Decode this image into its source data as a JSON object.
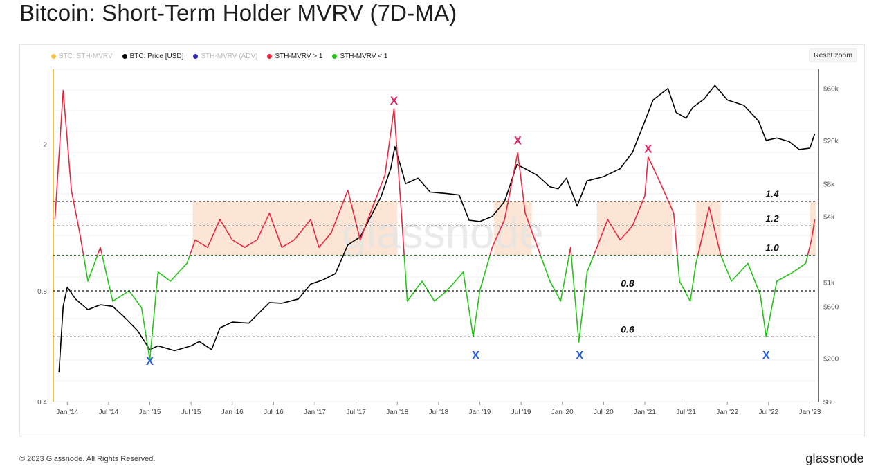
{
  "title": "Bitcoin: Short-Term Holder MVRV (7D-MA)",
  "reset_zoom_label": "Reset zoom",
  "footer": "© 2023 Glassnode. All Rights Reserved.",
  "brand": "glassnode",
  "watermark": "glassnode",
  "legend": [
    {
      "label": "BTC: STH-MVRV",
      "color": "#f7c04a",
      "muted": true
    },
    {
      "label": "BTC: Price [USD]",
      "color": "#000000",
      "muted": false
    },
    {
      "label": "STH-MVRV (ADV)",
      "color": "#2b2bb5",
      "muted": true
    },
    {
      "label": "STH-MVRV > 1",
      "color": "#e8283f",
      "muted": false
    },
    {
      "label": "STH-MVRV < 1",
      "color": "#27c21a",
      "muted": false
    }
  ],
  "chart_data": {
    "type": "line",
    "x_tick_labels": [
      "Jan '14",
      "Jul '14",
      "Jan '15",
      "Jul '15",
      "Jan '16",
      "Jul '16",
      "Jan '17",
      "Jul '17",
      "Jan '18",
      "Jul '18",
      "Jan '19",
      "Jul '19",
      "Jan '20",
      "Jul '20",
      "Jan '21",
      "Jul '21",
      "Jan '22",
      "Jul '22",
      "Jan '23"
    ],
    "y_left_ticks": [
      {
        "value": 0.4,
        "label": "0.4"
      },
      {
        "value": 0.8,
        "label": "0.8"
      },
      {
        "value": 2,
        "label": "2"
      }
    ],
    "y_left_scale": "log",
    "y_left_range": [
      0.4,
      3.2
    ],
    "y_right_ticks": [
      {
        "value": 80,
        "label": "$80"
      },
      {
        "value": 200,
        "label": "$200"
      },
      {
        "value": 600,
        "label": "$600"
      },
      {
        "value": 1000,
        "label": "$1k"
      },
      {
        "value": 4000,
        "label": "$4k"
      },
      {
        "value": 8000,
        "label": "$8k"
      },
      {
        "value": 20000,
        "label": "$20k"
      },
      {
        "value": 60000,
        "label": "$60k"
      }
    ],
    "y_right_scale": "log",
    "y_right_range": [
      80,
      90000
    ],
    "x_range": [
      2013.83,
      2023.08
    ],
    "reference_lines": [
      {
        "value": 1.4,
        "label": "1.4"
      },
      {
        "value": 1.2,
        "label": "1.2"
      },
      {
        "value": 1.0,
        "label": "1.0"
      },
      {
        "value": 0.8,
        "label": "0.8"
      },
      {
        "value": 0.6,
        "label": "0.6"
      }
    ],
    "shaded_bands": [
      {
        "from": 2015.52,
        "to": 2018.0
      },
      {
        "from": 2019.17,
        "to": 2019.63
      },
      {
        "from": 2020.42,
        "to": 2021.33
      },
      {
        "from": 2021.62,
        "to": 2021.92
      },
      {
        "from": 2023.0,
        "to": 2023.08
      }
    ],
    "top_markers": [
      {
        "x": 2017.96,
        "y": 2.5,
        "label": "X"
      },
      {
        "x": 2019.46,
        "y": 1.95,
        "label": "X"
      },
      {
        "x": 2021.04,
        "y": 1.85,
        "label": "X"
      }
    ],
    "bottom_markers": [
      {
        "x": 2015.0,
        "y": 0.53,
        "label": "X"
      },
      {
        "x": 2018.95,
        "y": 0.55,
        "label": "X"
      },
      {
        "x": 2020.21,
        "y": 0.55,
        "label": "X"
      },
      {
        "x": 2022.47,
        "y": 0.55,
        "label": "X"
      }
    ],
    "series": [
      {
        "name": "BTC: Price [USD]",
        "axis": "right",
        "color": "#000000",
        "points": [
          [
            2013.9,
            150
          ],
          [
            2013.95,
            600
          ],
          [
            2014.0,
            900
          ],
          [
            2014.1,
            700
          ],
          [
            2014.25,
            560
          ],
          [
            2014.4,
            620
          ],
          [
            2014.55,
            600
          ],
          [
            2014.7,
            470
          ],
          [
            2014.85,
            360
          ],
          [
            2015.0,
            240
          ],
          [
            2015.1,
            260
          ],
          [
            2015.3,
            235
          ],
          [
            2015.5,
            260
          ],
          [
            2015.6,
            285
          ],
          [
            2015.75,
            240
          ],
          [
            2015.85,
            380
          ],
          [
            2016.0,
            430
          ],
          [
            2016.2,
            420
          ],
          [
            2016.45,
            650
          ],
          [
            2016.6,
            640
          ],
          [
            2016.8,
            700
          ],
          [
            2016.95,
            960
          ],
          [
            2017.1,
            1050
          ],
          [
            2017.25,
            1200
          ],
          [
            2017.4,
            2200
          ],
          [
            2017.55,
            2600
          ],
          [
            2017.7,
            4300
          ],
          [
            2017.8,
            6000
          ],
          [
            2017.92,
            11000
          ],
          [
            2017.97,
            17500
          ],
          [
            2018.05,
            11000
          ],
          [
            2018.1,
            8000
          ],
          [
            2018.25,
            9000
          ],
          [
            2018.4,
            6700
          ],
          [
            2018.6,
            6500
          ],
          [
            2018.75,
            6300
          ],
          [
            2018.87,
            3700
          ],
          [
            2019.0,
            3600
          ],
          [
            2019.15,
            4000
          ],
          [
            2019.3,
            5500
          ],
          [
            2019.45,
            12000
          ],
          [
            2019.55,
            11000
          ],
          [
            2019.7,
            9500
          ],
          [
            2019.85,
            7500
          ],
          [
            2019.95,
            7200
          ],
          [
            2020.05,
            9000
          ],
          [
            2020.18,
            5000
          ],
          [
            2020.3,
            8500
          ],
          [
            2020.5,
            9300
          ],
          [
            2020.7,
            11000
          ],
          [
            2020.85,
            15500
          ],
          [
            2021.0,
            30000
          ],
          [
            2021.1,
            47000
          ],
          [
            2021.28,
            60000
          ],
          [
            2021.38,
            36000
          ],
          [
            2021.5,
            32000
          ],
          [
            2021.58,
            40000
          ],
          [
            2021.72,
            48000
          ],
          [
            2021.85,
            64000
          ],
          [
            2022.0,
            47000
          ],
          [
            2022.2,
            42000
          ],
          [
            2022.38,
            30000
          ],
          [
            2022.47,
            20000
          ],
          [
            2022.6,
            21000
          ],
          [
            2022.75,
            19500
          ],
          [
            2022.87,
            16500
          ],
          [
            2023.0,
            17000
          ],
          [
            2023.06,
            23000
          ]
        ]
      },
      {
        "name": "STH-MVRV",
        "axis": "left",
        "points": [
          [
            2013.85,
            1.25
          ],
          [
            2013.95,
            2.8
          ],
          [
            2014.05,
            1.5
          ],
          [
            2014.15,
            1.15
          ],
          [
            2014.25,
            0.85
          ],
          [
            2014.4,
            1.05
          ],
          [
            2014.55,
            0.75
          ],
          [
            2014.75,
            0.8
          ],
          [
            2014.9,
            0.72
          ],
          [
            2015.0,
            0.52
          ],
          [
            2015.1,
            0.9
          ],
          [
            2015.25,
            0.85
          ],
          [
            2015.45,
            0.95
          ],
          [
            2015.55,
            1.1
          ],
          [
            2015.7,
            1.05
          ],
          [
            2015.85,
            1.25
          ],
          [
            2016.0,
            1.1
          ],
          [
            2016.15,
            1.05
          ],
          [
            2016.3,
            1.1
          ],
          [
            2016.45,
            1.3
          ],
          [
            2016.6,
            1.05
          ],
          [
            2016.75,
            1.1
          ],
          [
            2016.95,
            1.25
          ],
          [
            2017.05,
            1.05
          ],
          [
            2017.2,
            1.15
          ],
          [
            2017.4,
            1.5
          ],
          [
            2017.55,
            1.1
          ],
          [
            2017.7,
            1.35
          ],
          [
            2017.85,
            1.65
          ],
          [
            2017.96,
            2.5
          ],
          [
            2018.05,
            1.3
          ],
          [
            2018.12,
            0.75
          ],
          [
            2018.3,
            0.85
          ],
          [
            2018.45,
            0.75
          ],
          [
            2018.6,
            0.8
          ],
          [
            2018.8,
            0.9
          ],
          [
            2018.92,
            0.6
          ],
          [
            2019.0,
            0.8
          ],
          [
            2019.15,
            1.05
          ],
          [
            2019.3,
            1.25
          ],
          [
            2019.46,
            1.9
          ],
          [
            2019.55,
            1.3
          ],
          [
            2019.7,
            1.05
          ],
          [
            2019.85,
            0.85
          ],
          [
            2019.98,
            0.75
          ],
          [
            2020.1,
            1.05
          ],
          [
            2020.2,
            0.58
          ],
          [
            2020.3,
            0.9
          ],
          [
            2020.42,
            1.05
          ],
          [
            2020.55,
            1.25
          ],
          [
            2020.7,
            1.1
          ],
          [
            2020.85,
            1.2
          ],
          [
            2021.0,
            1.45
          ],
          [
            2021.04,
            1.85
          ],
          [
            2021.2,
            1.55
          ],
          [
            2021.35,
            1.3
          ],
          [
            2021.42,
            0.85
          ],
          [
            2021.55,
            0.75
          ],
          [
            2021.62,
            0.95
          ],
          [
            2021.78,
            1.35
          ],
          [
            2021.92,
            1.0
          ],
          [
            2022.05,
            0.85
          ],
          [
            2022.25,
            0.95
          ],
          [
            2022.4,
            0.78
          ],
          [
            2022.47,
            0.6
          ],
          [
            2022.6,
            0.85
          ],
          [
            2022.8,
            0.9
          ],
          [
            2022.95,
            0.95
          ],
          [
            2023.02,
            1.1
          ],
          [
            2023.06,
            1.25
          ]
        ]
      }
    ]
  }
}
